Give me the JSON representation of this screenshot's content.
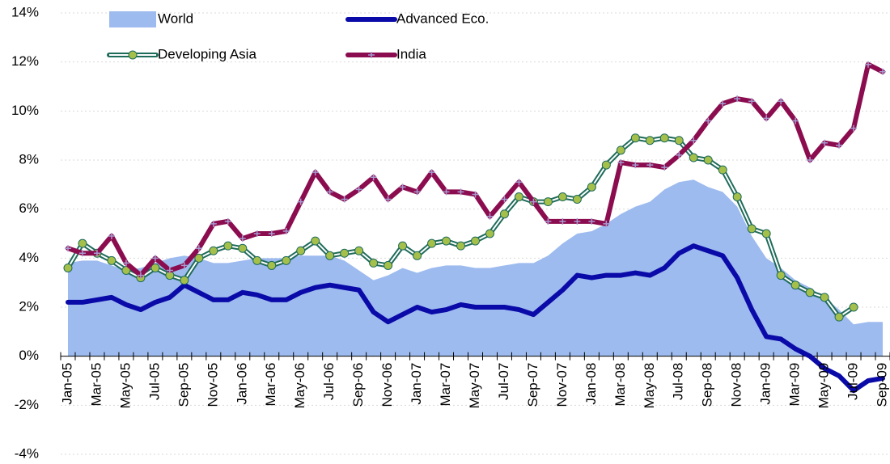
{
  "chart_data": {
    "type": "line",
    "categories": [
      "Jan-05",
      null,
      "Mar-05",
      null,
      "May-05",
      null,
      "Jul-05",
      null,
      "Sep-05",
      null,
      "Nov-05",
      null,
      "Jan-06",
      null,
      "Mar-06",
      null,
      "May-06",
      null,
      "Jul-06",
      null,
      "Sep-06",
      null,
      "Nov-06",
      null,
      "Jan-07",
      null,
      "Mar-07",
      null,
      "May-07",
      null,
      "Jul-07",
      null,
      "Sep-07",
      null,
      "Nov-07",
      null,
      "Jan-08",
      null,
      "Mar-08",
      null,
      "May-08",
      null,
      "Jul-08",
      null,
      "Sep-08",
      null,
      "Nov-08",
      null,
      "Jan-09",
      null,
      "Mar-09",
      null,
      "May-09",
      null,
      "Jul-09",
      null,
      "Sep-09"
    ],
    "series": [
      {
        "name": "World",
        "kind": "area",
        "color": "#9dbbef",
        "values": [
          3.8,
          3.9,
          3.9,
          3.7,
          3.5,
          3.6,
          3.8,
          4.0,
          4.1,
          4.0,
          3.8,
          3.8,
          3.9,
          4.0,
          4.0,
          4.0,
          4.1,
          4.1,
          4.1,
          3.9,
          3.5,
          3.1,
          3.3,
          3.6,
          3.4,
          3.6,
          3.7,
          3.7,
          3.6,
          3.6,
          3.7,
          3.8,
          3.8,
          4.1,
          4.6,
          5.0,
          5.1,
          5.4,
          5.8,
          6.1,
          6.3,
          6.8,
          7.1,
          7.2,
          6.9,
          6.7,
          6.1,
          4.9,
          4.0,
          3.6,
          3.1,
          2.8,
          2.4,
          1.9,
          1.3,
          1.4,
          1.4
        ]
      },
      {
        "name": "Advanced Eco.",
        "kind": "line",
        "color": "#0a0aa8",
        "values": [
          2.2,
          2.2,
          2.3,
          2.4,
          2.1,
          1.9,
          2.2,
          2.4,
          2.9,
          2.6,
          2.3,
          2.3,
          2.6,
          2.5,
          2.3,
          2.3,
          2.6,
          2.8,
          2.9,
          2.8,
          2.7,
          1.8,
          1.4,
          1.7,
          2.0,
          1.8,
          1.9,
          2.1,
          2.0,
          2.0,
          2.0,
          1.9,
          1.7,
          2.2,
          2.7,
          3.3,
          3.2,
          3.3,
          3.3,
          3.4,
          3.3,
          3.6,
          4.2,
          4.5,
          4.3,
          4.1,
          3.2,
          1.9,
          0.8,
          0.7,
          0.3,
          0.0,
          -0.5,
          -0.8,
          -1.4,
          -1.0,
          -0.9
        ]
      },
      {
        "name": "Developing Asia",
        "kind": "circle-line",
        "color": "#1f6b5a",
        "marker_color": "#a5c04a",
        "values": [
          3.6,
          4.6,
          4.2,
          3.9,
          3.5,
          3.2,
          3.6,
          3.3,
          3.1,
          4.0,
          4.3,
          4.5,
          4.4,
          3.9,
          3.7,
          3.9,
          4.3,
          4.7,
          4.1,
          4.2,
          4.3,
          3.8,
          3.7,
          4.5,
          4.1,
          4.6,
          4.7,
          4.5,
          4.7,
          5.0,
          5.8,
          6.5,
          6.3,
          6.3,
          6.5,
          6.4,
          6.9,
          7.8,
          8.4,
          8.9,
          8.8,
          8.9,
          8.8,
          8.1,
          8.0,
          7.6,
          6.5,
          5.2,
          5.0,
          3.3,
          2.9,
          2.6,
          2.4,
          1.6,
          2.0,
          null,
          null
        ]
      },
      {
        "name": "India",
        "kind": "plus-line",
        "color": "#8b0d4f",
        "marker_color": "#a89ad0",
        "values": [
          4.4,
          4.2,
          4.2,
          4.9,
          3.8,
          3.3,
          4.0,
          3.5,
          3.7,
          4.4,
          5.4,
          5.5,
          4.8,
          5.0,
          5.0,
          5.1,
          6.3,
          7.5,
          6.7,
          6.4,
          6.8,
          7.3,
          6.4,
          6.9,
          6.7,
          7.5,
          6.7,
          6.7,
          6.6,
          5.7,
          6.4,
          7.1,
          6.3,
          5.5,
          5.5,
          5.5,
          5.5,
          5.4,
          7.9,
          7.8,
          7.8,
          7.7,
          8.2,
          8.8,
          9.6,
          10.3,
          10.5,
          10.4,
          9.7,
          10.4,
          9.6,
          8.0,
          8.7,
          8.6,
          9.3,
          11.9,
          11.6
        ]
      }
    ],
    "ylim": [
      -4,
      14
    ],
    "yticks": [
      {
        "value": -4,
        "label": "-4%"
      },
      {
        "value": -2,
        "label": "-2%"
      },
      {
        "value": 0,
        "label": "0%"
      },
      {
        "value": 2,
        "label": "2%"
      },
      {
        "value": 4,
        "label": "4%"
      },
      {
        "value": 6,
        "label": "6%"
      },
      {
        "value": 8,
        "label": "8%"
      },
      {
        "value": 10,
        "label": "10%"
      },
      {
        "value": 12,
        "label": "12%"
      },
      {
        "value": 14,
        "label": "14%"
      }
    ],
    "grid": true,
    "legend": "top"
  }
}
